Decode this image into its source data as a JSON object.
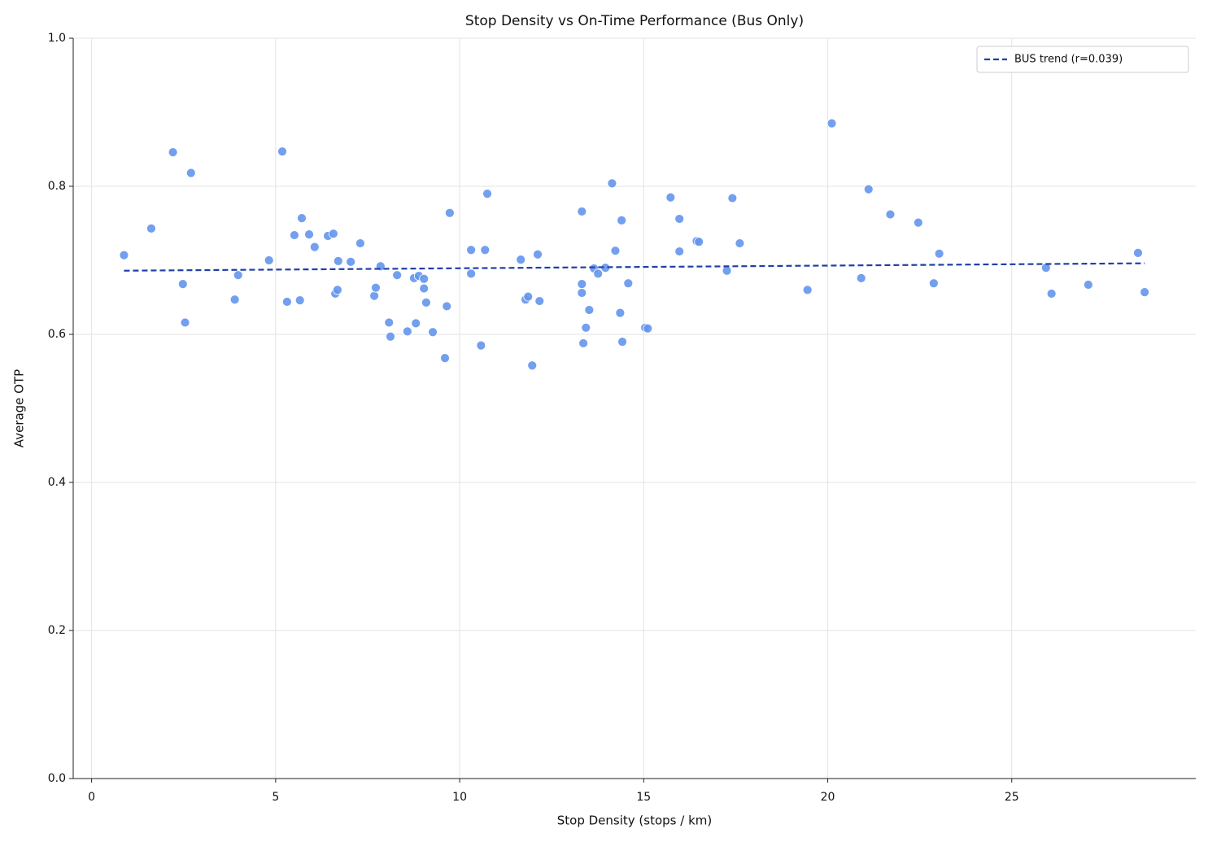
{
  "chart_data": {
    "type": "scatter",
    "title": "Stop Density vs On-Time Performance (Bus Only)",
    "x_label": "Stop Density (stops / km)",
    "y_label": "Average OTP",
    "xlim": [
      -0.5,
      30.0
    ],
    "ylim": [
      0,
      1
    ],
    "xticks": [
      0,
      5,
      10,
      15,
      20,
      25
    ],
    "yticks": [
      {
        "value": 0,
        "label": "0.0"
      },
      0.2,
      0.4,
      0.6,
      0.8,
      {
        "value": 1,
        "label": "1.0"
      }
    ],
    "grid": true,
    "legend": "upper right",
    "points": {
      "color": "#6495ed",
      "x": [
        0.88,
        1.62,
        2.21,
        2.48,
        2.54,
        2.7,
        3.89,
        3.98,
        4.82,
        5.18,
        5.31,
        5.51,
        5.66,
        5.71,
        5.91,
        6.06,
        6.42,
        6.57,
        6.62,
        6.68,
        6.7,
        7.04,
        7.3,
        7.68,
        7.72,
        7.85,
        8.08,
        8.12,
        8.3,
        8.58,
        8.76,
        8.81,
        8.89,
        9.03,
        9.03,
        9.09,
        9.27,
        9.6,
        9.65,
        9.73,
        10.31,
        10.31,
        10.58,
        10.69,
        10.75,
        11.66,
        11.79,
        11.86,
        11.97,
        12.12,
        12.17,
        13.32,
        13.32,
        13.32,
        13.36,
        13.43,
        13.52,
        13.65,
        13.76,
        13.96,
        14.14,
        14.23,
        14.36,
        14.4,
        14.42,
        14.58,
        15.04,
        15.11,
        15.73,
        15.97,
        15.97,
        16.44,
        16.5,
        17.26,
        17.41,
        17.61,
        19.45,
        20.11,
        20.91,
        21.11,
        21.7,
        22.46,
        22.88,
        23.03,
        25.93,
        26.08,
        27.08,
        28.43,
        28.61
      ],
      "y": [
        0.707,
        0.743,
        0.846,
        0.668,
        0.616,
        0.818,
        0.647,
        0.68,
        0.7,
        0.847,
        0.644,
        0.734,
        0.646,
        0.757,
        0.735,
        0.718,
        0.733,
        0.736,
        0.655,
        0.66,
        0.699,
        0.698,
        0.723,
        0.652,
        0.663,
        0.692,
        0.616,
        0.597,
        0.68,
        0.604,
        0.676,
        0.615,
        0.679,
        0.675,
        0.662,
        0.643,
        0.603,
        0.568,
        0.638,
        0.764,
        0.714,
        0.682,
        0.585,
        0.714,
        0.79,
        0.701,
        0.647,
        0.651,
        0.558,
        0.708,
        0.645,
        0.766,
        0.668,
        0.656,
        0.588,
        0.609,
        0.633,
        0.689,
        0.682,
        0.69,
        0.804,
        0.713,
        0.629,
        0.754,
        0.59,
        0.669,
        0.609,
        0.608,
        0.785,
        0.756,
        0.712,
        0.726,
        0.725,
        0.686,
        0.784,
        0.723,
        0.66,
        0.885,
        0.676,
        0.796,
        0.762,
        0.751,
        0.669,
        0.709,
        0.69,
        0.655,
        0.667,
        0.71,
        0.657
      ]
    },
    "trend": {
      "name": "BUS trend (r=0.039)",
      "color": "#1f3fa8",
      "x": [
        0.88,
        28.61
      ],
      "y": [
        0.686,
        0.696
      ]
    }
  }
}
